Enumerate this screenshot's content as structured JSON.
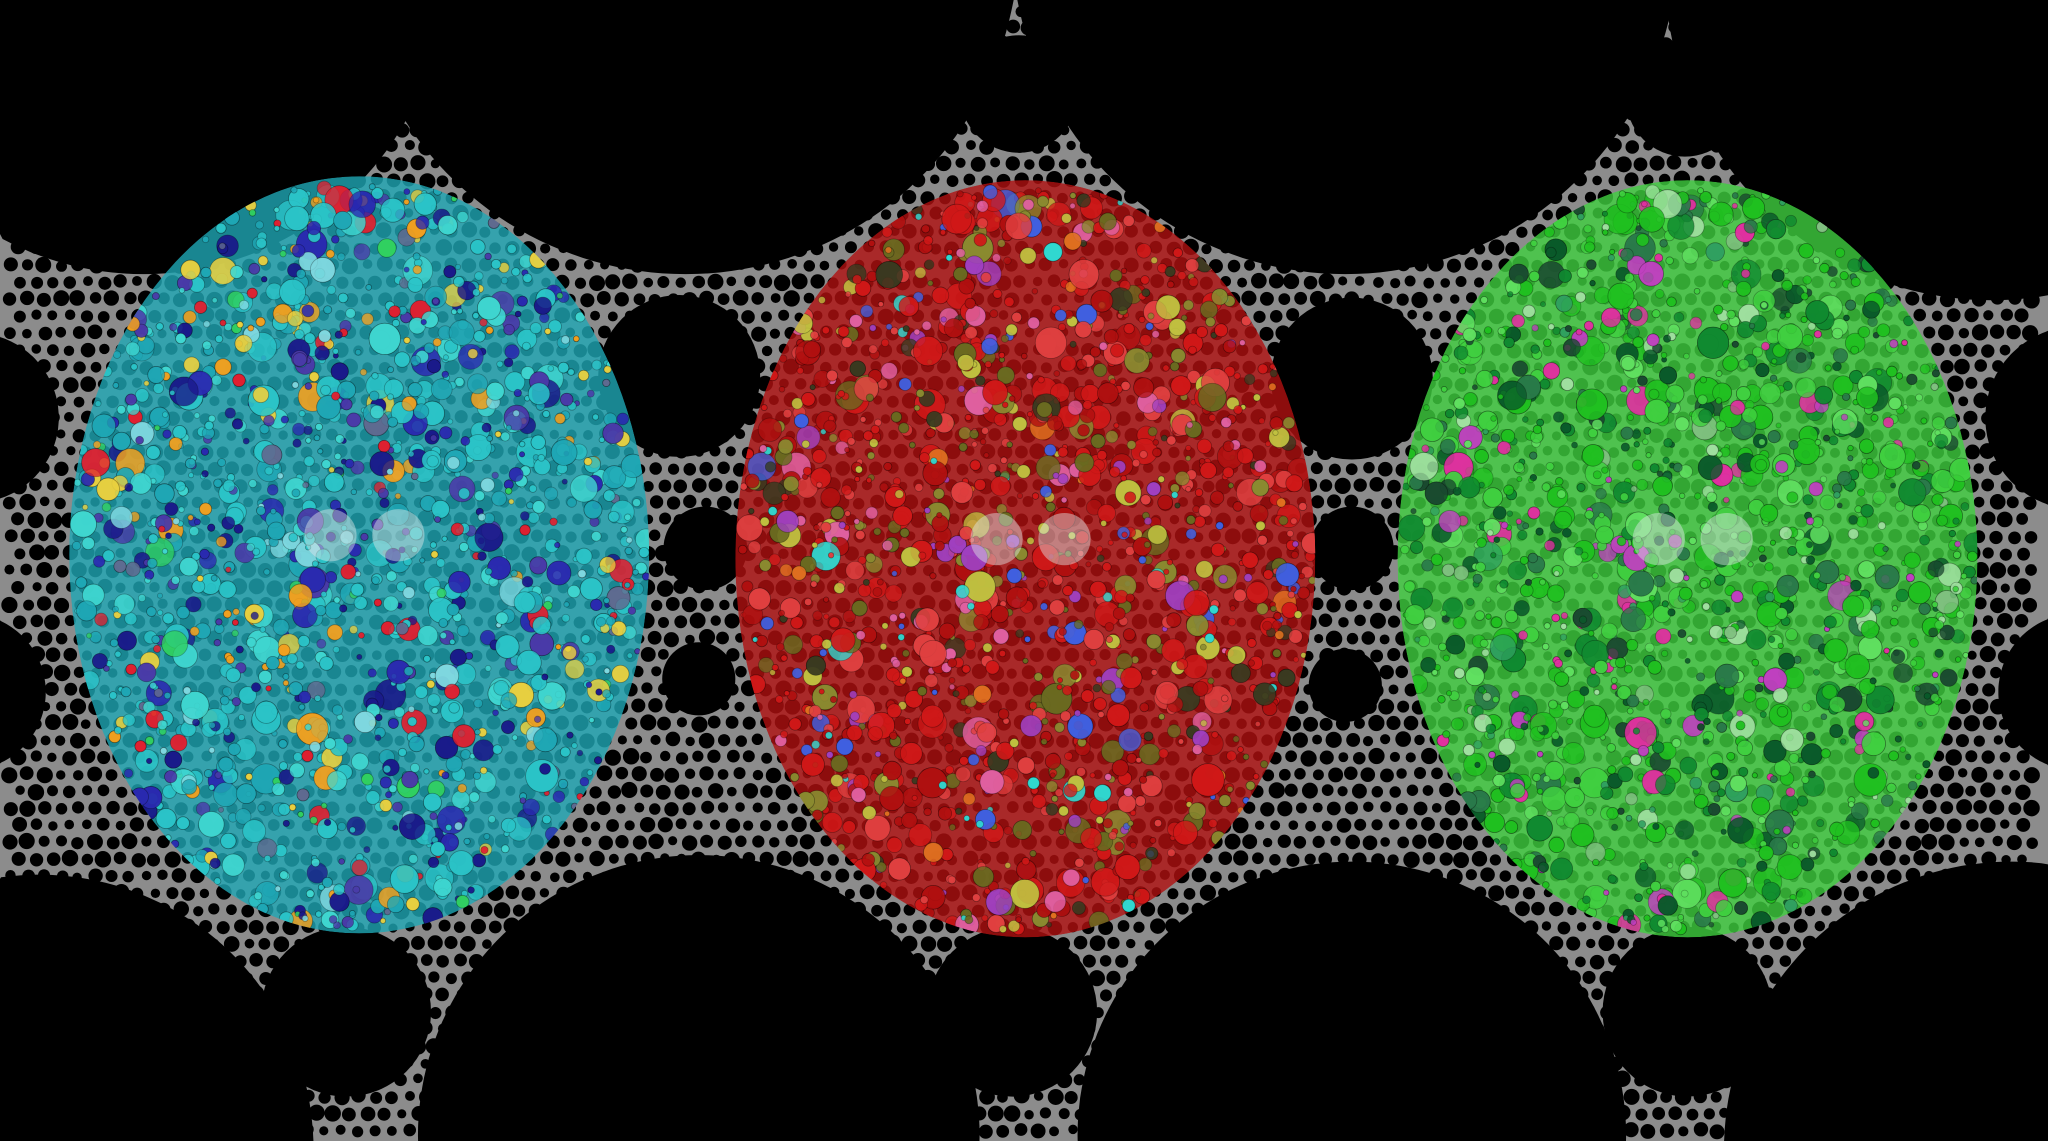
{
  "artwork": {
    "background_color": "#000000",
    "lattice_color": "#8c8c8c",
    "brains": [
      {
        "name": "cyan-blue-brain",
        "palette": [
          "#2bc4c8",
          "#1fa7b5",
          "#3fd6d0",
          "#1a1a8a",
          "#2a2ab0",
          "#4a3aa8",
          "#e8d040",
          "#f0a020",
          "#e02030",
          "#30d060",
          "#7fd8e0",
          "#606a90"
        ]
      },
      {
        "name": "red-olive-brain",
        "palette": [
          "#d01818",
          "#b01010",
          "#e04040",
          "#6a6a20",
          "#8a8a30",
          "#c0c040",
          "#3a3a20",
          "#e060a0",
          "#4060e0",
          "#30d8d0",
          "#a040c0",
          "#e07020"
        ]
      },
      {
        "name": "green-brain",
        "palette": [
          "#20c020",
          "#40d040",
          "#108a30",
          "#0a5a2a",
          "#2a7a4a",
          "#60e060",
          "#1a4a30",
          "#e030a0",
          "#a0e0a0",
          "#30a060",
          "#c040c0",
          "#80c080"
        ]
      }
    ]
  }
}
